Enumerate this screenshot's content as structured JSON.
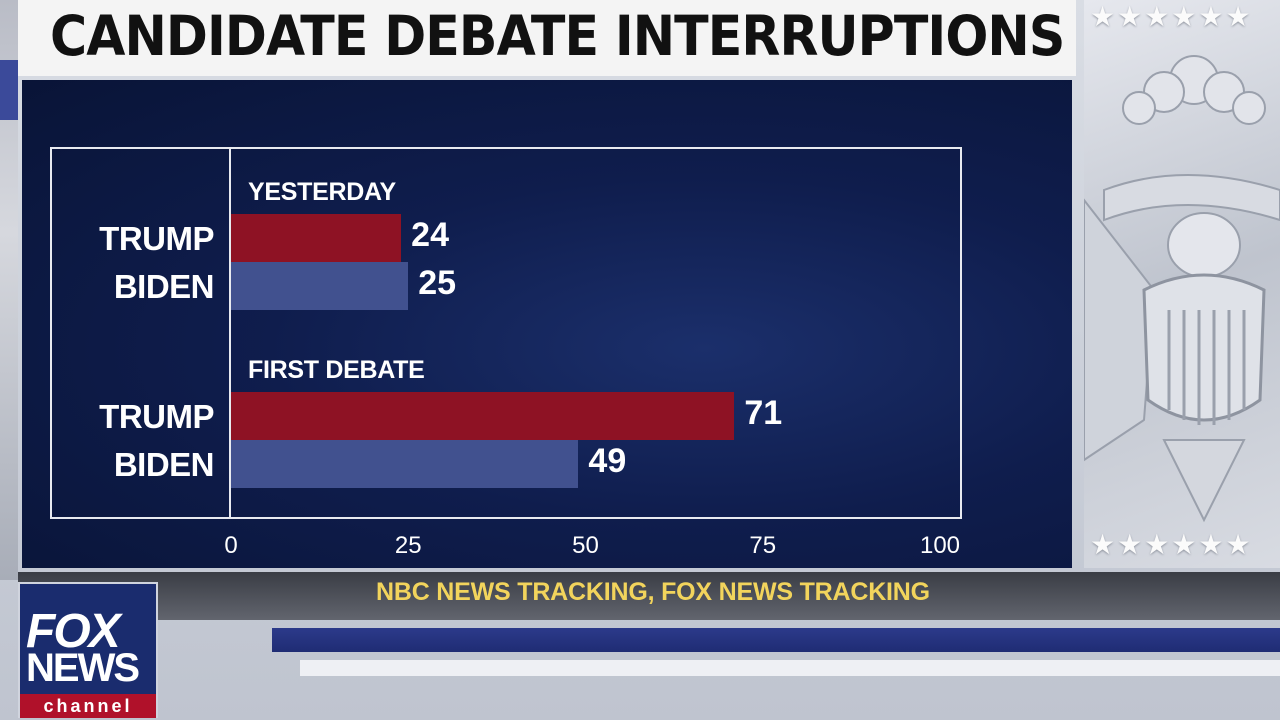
{
  "title": "CANDIDATE DEBATE INTERRUPTIONS",
  "source": "NBC NEWS TRACKING, FOX NEWS TRACKING",
  "logo": {
    "line1": "FOX",
    "line2": "NEWS",
    "line3": "channel"
  },
  "colors": {
    "trump": "#8e1224",
    "biden": "#41518f",
    "panel": "#0f1d4d",
    "source_text": "#f2d45c"
  },
  "chart_data": {
    "type": "bar",
    "orientation": "horizontal",
    "groups": [
      {
        "label": "YESTERDAY",
        "bars": [
          {
            "category": "TRUMP",
            "value": 24
          },
          {
            "category": "BIDEN",
            "value": 25
          }
        ]
      },
      {
        "label": "FIRST DEBATE",
        "bars": [
          {
            "category": "TRUMP",
            "value": 71
          },
          {
            "category": "BIDEN",
            "value": 49
          }
        ]
      }
    ],
    "xlim": [
      0,
      100
    ],
    "xticks": [
      "0",
      "25",
      "50",
      "75",
      "100"
    ],
    "grid": false,
    "legend": "none"
  }
}
